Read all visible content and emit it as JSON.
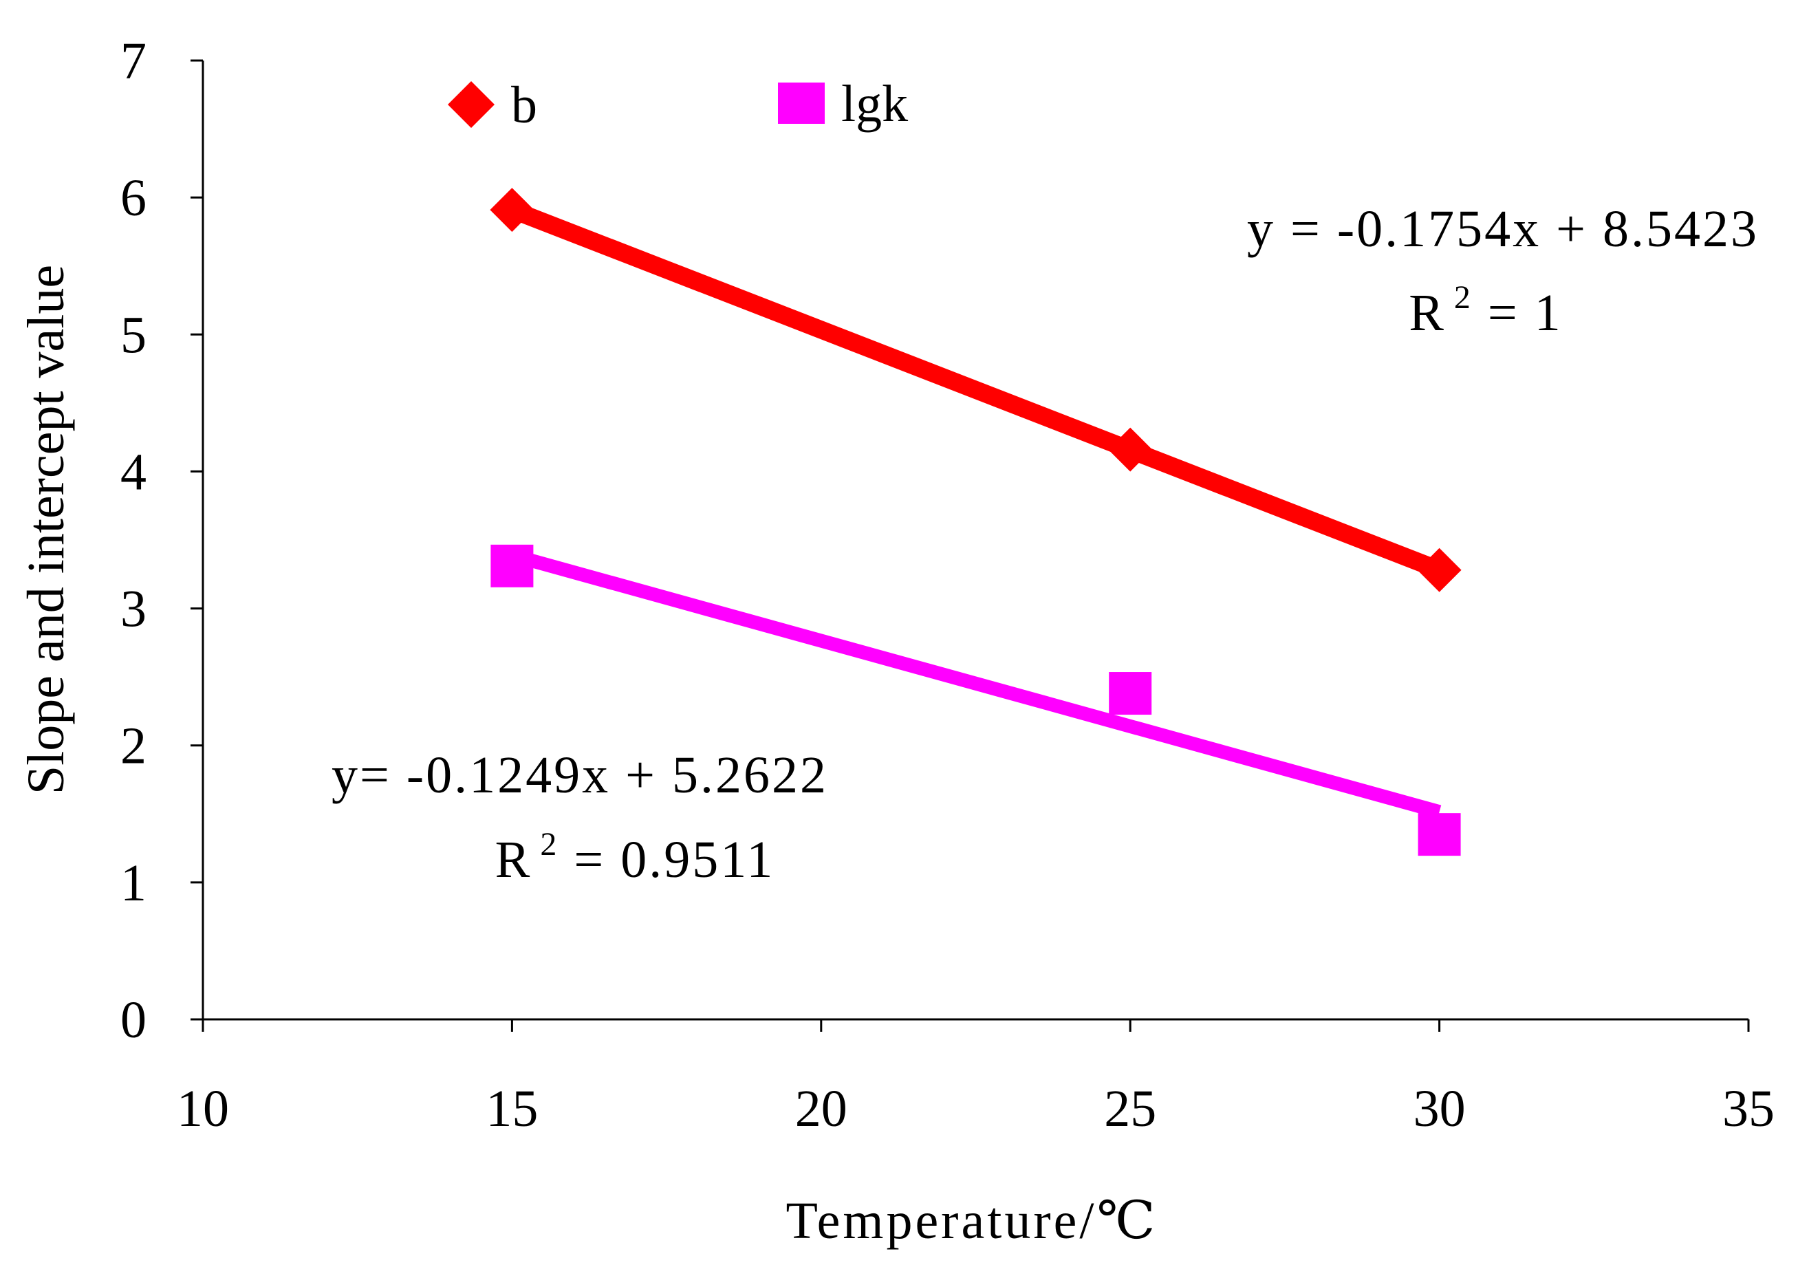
{
  "chart_data": {
    "type": "scatter",
    "title": "",
    "xlabel": "Temperature/℃",
    "ylabel": "Slope and intercept value",
    "xlim": [
      10,
      35
    ],
    "ylim": [
      0,
      7
    ],
    "xticks": [
      10,
      15,
      20,
      25,
      30,
      35
    ],
    "yticks": [
      0,
      1,
      2,
      3,
      4,
      5,
      6,
      7
    ],
    "grid": false,
    "legend_position": "top-left",
    "series": [
      {
        "name": "b",
        "marker": "diamond",
        "color": "#ff0000",
        "x": [
          15,
          25,
          30
        ],
        "y": [
          5.91,
          4.16,
          3.28
        ],
        "trendline": {
          "slope": -0.1754,
          "intercept": 8.5423,
          "x_range": [
            15,
            30
          ],
          "equation": "y = -0.1754x + 8.5423",
          "r2_prefix": "R",
          "r2_exp": "2",
          "r2_suffix": " = 1"
        }
      },
      {
        "name": "lgk",
        "marker": "square",
        "color": "#ff00ff",
        "x": [
          15,
          25,
          30
        ],
        "y": [
          3.31,
          2.38,
          1.35
        ],
        "trendline": {
          "slope": -0.1249,
          "intercept": 5.2622,
          "x_range": [
            15,
            30
          ],
          "equation": "y= -0.1249x + 5.2622",
          "r2_prefix": "R",
          "r2_exp": "2",
          "r2_suffix": " = 0.9511"
        }
      }
    ]
  }
}
